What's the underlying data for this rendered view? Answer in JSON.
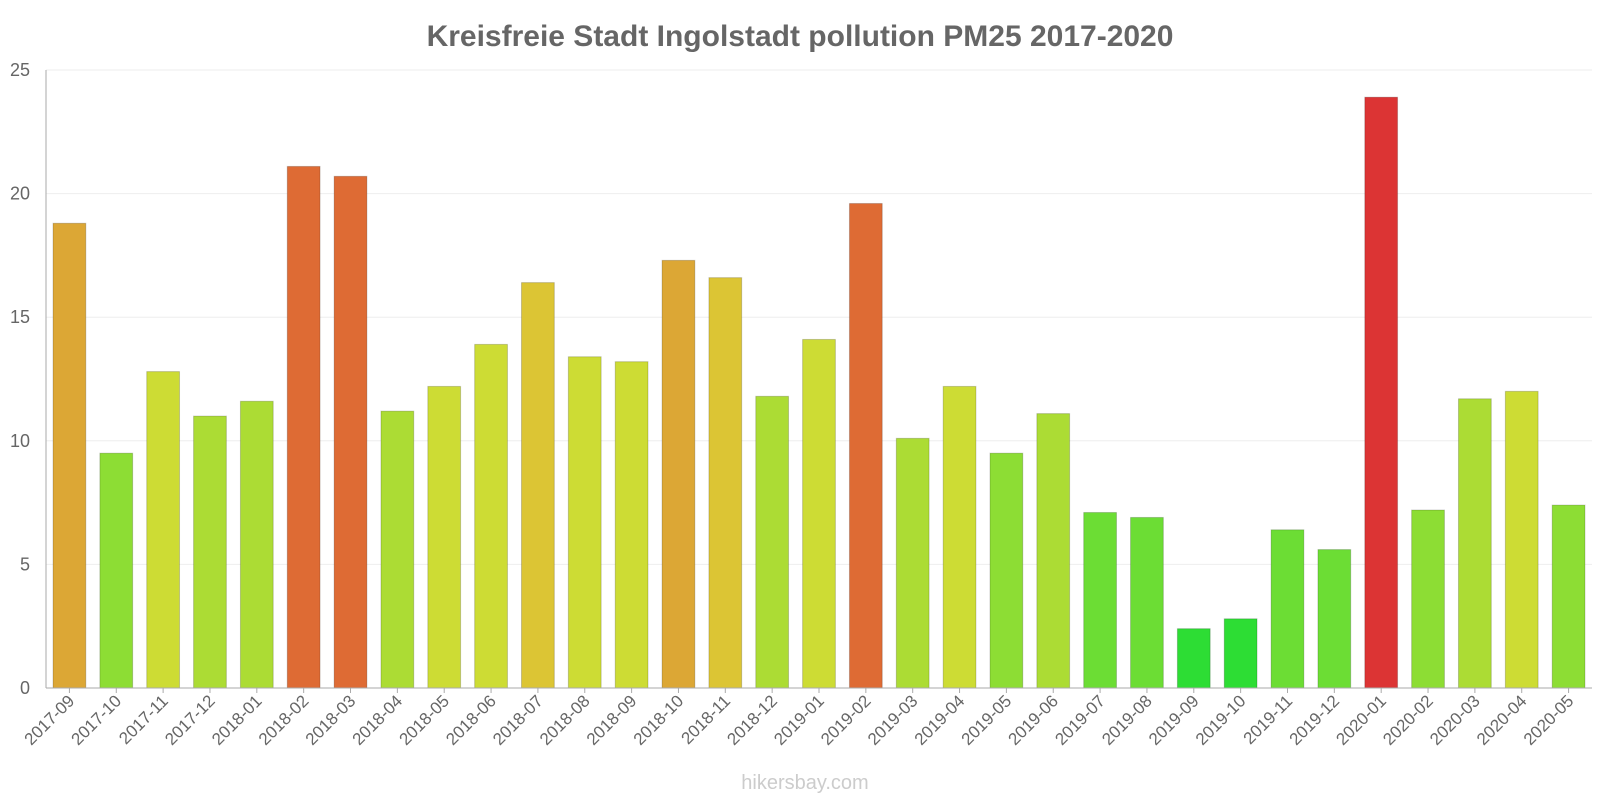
{
  "chart_data": {
    "type": "bar",
    "title": "Kreisfreie Stadt Ingolstadt pollution PM25 2017-2020",
    "xlabel": "",
    "ylabel": "",
    "ylim": [
      0,
      25
    ],
    "yticks": [
      "0",
      "5",
      "10",
      "15",
      "20",
      "25"
    ],
    "grid": true,
    "categories": [
      "2017-09",
      "2017-10",
      "2017-11",
      "2017-12",
      "2018-01",
      "2018-02",
      "2018-03",
      "2018-04",
      "2018-05",
      "2018-06",
      "2018-07",
      "2018-08",
      "2018-09",
      "2018-10",
      "2018-11",
      "2018-12",
      "2019-01",
      "2019-02",
      "2019-03",
      "2019-04",
      "2019-05",
      "2019-06",
      "2019-07",
      "2019-08",
      "2019-09",
      "2019-10",
      "2019-11",
      "2019-12",
      "2020-01",
      "2020-02",
      "2020-03",
      "2020-04",
      "2020-05"
    ],
    "values": [
      18.8,
      9.5,
      12.8,
      11.0,
      11.6,
      21.1,
      20.7,
      11.2,
      12.2,
      13.9,
      16.4,
      13.4,
      13.2,
      17.3,
      16.6,
      11.8,
      14.1,
      19.6,
      10.1,
      12.2,
      9.5,
      11.1,
      7.1,
      6.9,
      2.4,
      2.8,
      6.4,
      5.6,
      23.9,
      7.2,
      11.7,
      12.0,
      7.4
    ],
    "colors": [
      "#dca735",
      "#8ddd34",
      "#cddc34",
      "#acdc34",
      "#acdc34",
      "#de6b34",
      "#de6b34",
      "#acdc34",
      "#cddc34",
      "#cddc34",
      "#dcc534",
      "#cddc34",
      "#cddc34",
      "#dca735",
      "#dcc534",
      "#acdc34",
      "#cddc34",
      "#de6b34",
      "#acdc34",
      "#cddc34",
      "#8ddd34",
      "#acdc34",
      "#6cdd34",
      "#6cdd34",
      "#2ddd34",
      "#2ddd34",
      "#6cdd34",
      "#6cdd34",
      "#dc3434",
      "#8ddd34",
      "#acdc34",
      "#cddc34",
      "#8ddd34"
    ]
  },
  "footer": {
    "credit": "hikersbay.com"
  }
}
